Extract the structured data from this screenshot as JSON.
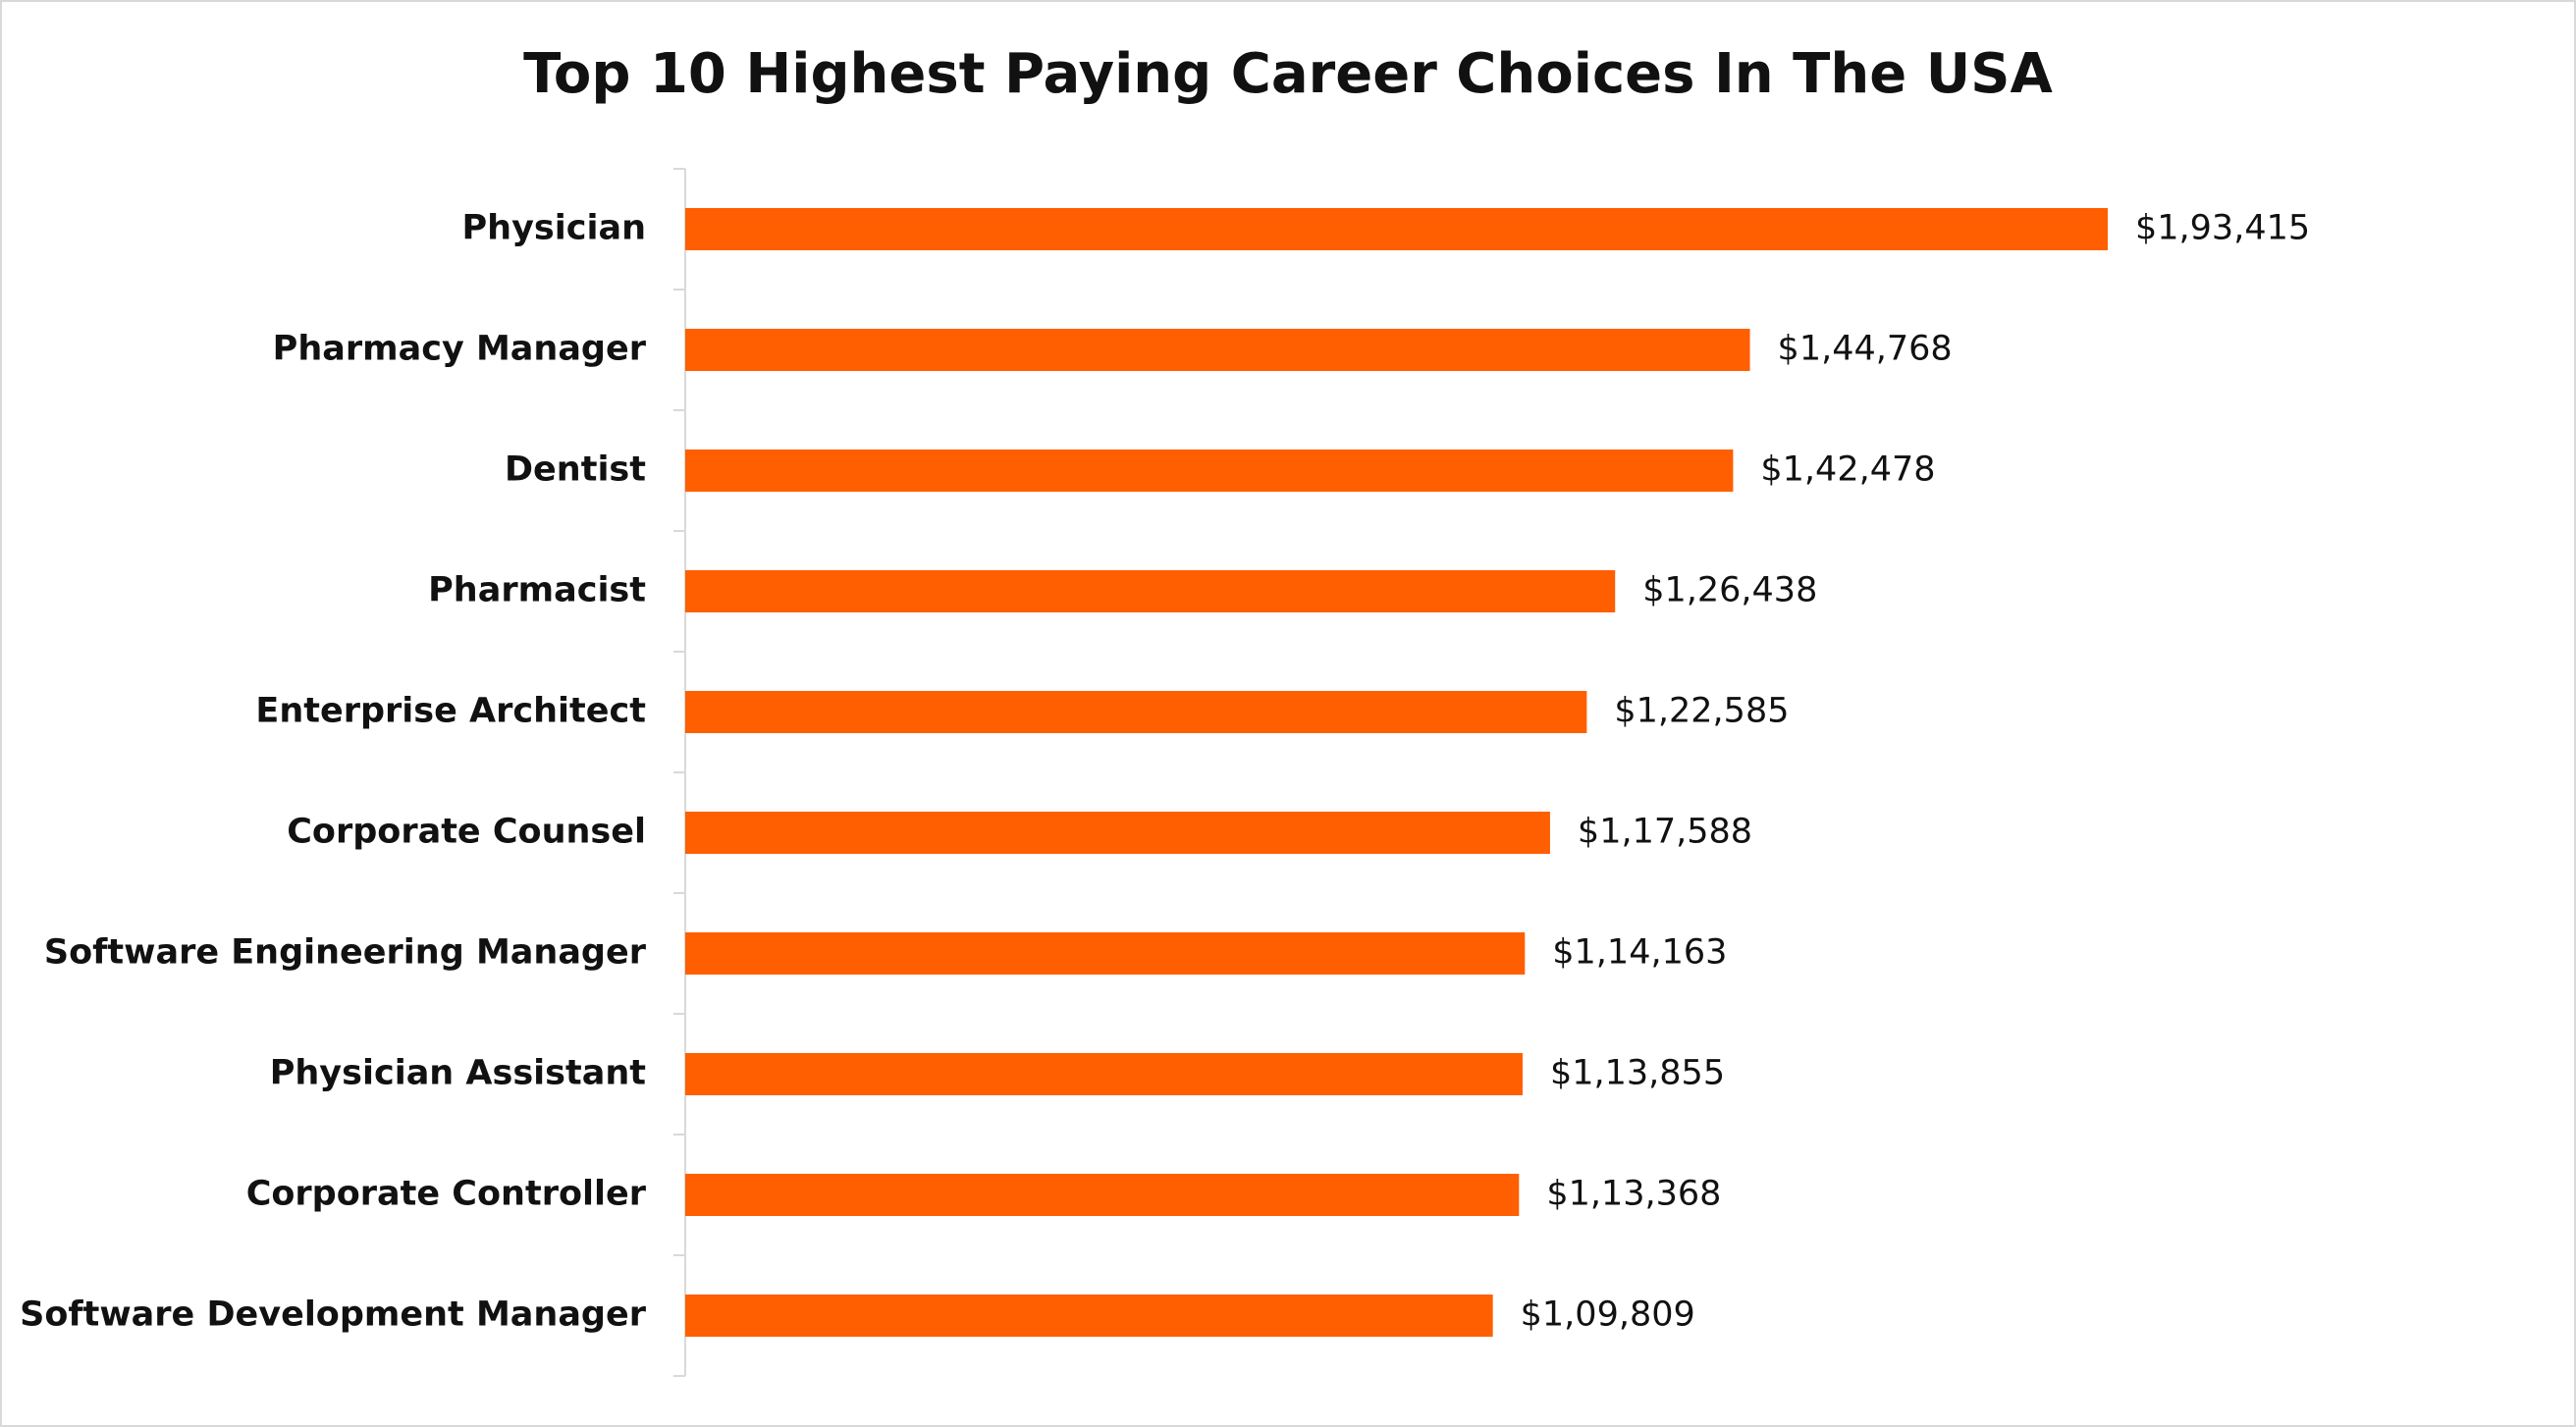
{
  "chart_data": {
    "type": "bar",
    "orientation": "horizontal",
    "title": "Top 10 Highest Paying Career Choices In The USA",
    "categories": [
      "Physician",
      "Pharmacy Manager",
      "Dentist",
      "Pharmacist",
      "Enterprise Architect",
      "Corporate Counsel",
      "Software Engineering Manager",
      "Physician Assistant",
      "Corporate Controller",
      "Software Development Manager"
    ],
    "values": [
      193415,
      144768,
      142478,
      126438,
      122585,
      117588,
      114163,
      113855,
      113368,
      109809
    ],
    "value_labels": [
      "$1,93,415",
      "$1,44,768",
      "$1,42,478",
      "$1,26,438",
      "$1,22,585",
      "$1,17,588",
      "$1,14,163",
      "$1,13,855",
      "$1,13,368",
      "$1,09,809"
    ],
    "color": "#ff5f00"
  }
}
